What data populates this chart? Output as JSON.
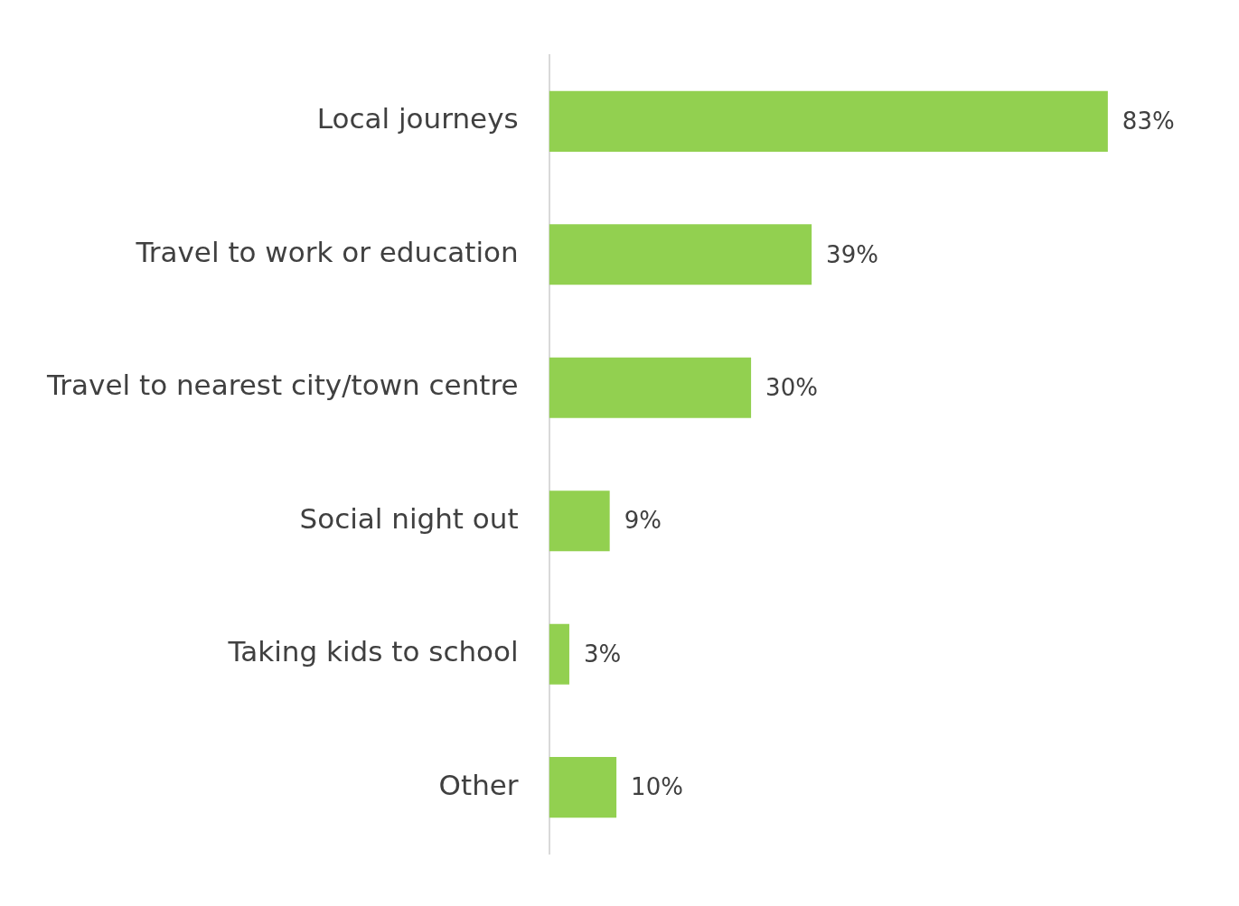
{
  "chart_data": {
    "type": "bar",
    "orientation": "horizontal",
    "categories": [
      "Local journeys",
      "Travel to work or education",
      "Travel to nearest city/town centre",
      "Social night out",
      "Taking kids to school",
      "Other"
    ],
    "values": [
      83,
      39,
      30,
      9,
      3,
      10
    ],
    "value_labels": [
      "83%",
      "39%",
      "30%",
      "9%",
      "3%",
      "10%"
    ],
    "color": "#92d050",
    "grid": false,
    "legend": false,
    "tick_labels": "y"
  }
}
